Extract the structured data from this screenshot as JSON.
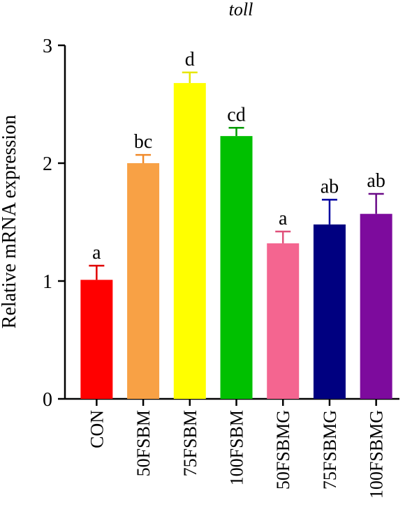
{
  "chart_data": {
    "type": "bar",
    "title": "toll",
    "xlabel": "",
    "ylabel": "Relative mRNA expression",
    "ylim": [
      0,
      3
    ],
    "yticks": [
      0,
      1,
      2,
      3
    ],
    "categories": [
      "CON",
      "50FSBM",
      "75FSBM",
      "100FSBM",
      "50FSBMG",
      "75FSBMG",
      "100FSBMG"
    ],
    "values": [
      1.01,
      2.0,
      2.68,
      2.23,
      1.32,
      1.48,
      1.57
    ],
    "errors": [
      0.12,
      0.07,
      0.09,
      0.07,
      0.1,
      0.21,
      0.17
    ],
    "significance": [
      "a",
      "bc",
      "d",
      "cd",
      "a",
      "ab",
      "ab"
    ],
    "colors": [
      "#ff0000",
      "#f8a145",
      "#ffff00",
      "#00c000",
      "#f46590",
      "#000080",
      "#7d0b9d"
    ],
    "error_colors": [
      "#e00000",
      "#f08a2a",
      "#e6e600",
      "#009a00",
      "#e0507a",
      "#0000a0",
      "#6a0a88"
    ],
    "grid": false,
    "legend": "none"
  }
}
